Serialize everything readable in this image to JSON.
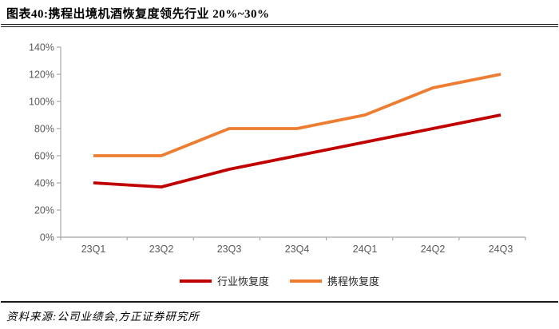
{
  "header": {
    "title": "图表40:携程出境机酒恢复度领先行业 20%~30%"
  },
  "footer": {
    "source": "资料来源:公司业绩会,方正证券研究所"
  },
  "colors": {
    "industry_line": "#C00000",
    "ctrip_line": "#ED7D31",
    "axis": "#A6A6A6",
    "tick_text": "#595959",
    "rule": "#1A1A1A"
  },
  "chart_data": {
    "type": "line",
    "title": "图表40:携程出境机酒恢复度领先行业 20%~30%",
    "categories": [
      "23Q1",
      "23Q2",
      "23Q3",
      "23Q4",
      "24Q1",
      "24Q2",
      "24Q3"
    ],
    "series": [
      {
        "name": "行业恢复度",
        "color": "#C00000",
        "values": [
          40,
          37,
          50,
          60,
          70,
          80,
          90
        ]
      },
      {
        "name": "携程恢复度",
        "color": "#ED7D31",
        "values": [
          60,
          60,
          80,
          80,
          90,
          110,
          120
        ]
      }
    ],
    "xlabel": "",
    "ylabel": "",
    "ylim": [
      0,
      140
    ],
    "ytick_step": 20,
    "ytick_suffix": "%",
    "ytick_labels": [
      "0%",
      "20%",
      "40%",
      "60%",
      "80%",
      "100%",
      "120%",
      "140%"
    ],
    "grid": false,
    "legend_position": "bottom"
  }
}
